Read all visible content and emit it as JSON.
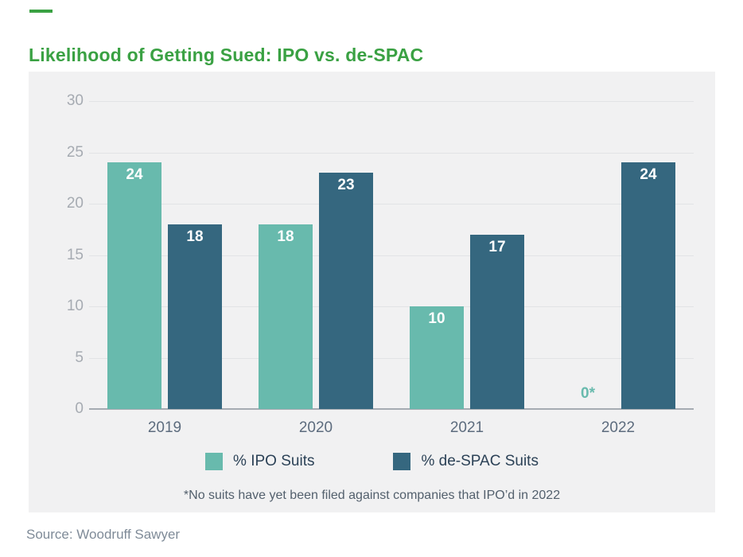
{
  "page": {
    "title": "Likelihood of Getting Sued: IPO vs. de-SPAC",
    "source": "Source: Woodruff Sawyer",
    "accent_color": "#3aa143"
  },
  "chart_data": {
    "type": "bar",
    "title": "Likelihood of Getting Sued: IPO vs. de-SPAC",
    "categories": [
      "2019",
      "2020",
      "2021",
      "2022"
    ],
    "series": [
      {
        "name": "% IPO Suits",
        "color": "#68baad",
        "values": [
          24,
          18,
          10,
          0
        ],
        "value_labels": [
          "24",
          "18",
          "10",
          "0*"
        ]
      },
      {
        "name": "% de-SPAC Suits",
        "color": "#35677f",
        "values": [
          18,
          23,
          17,
          24
        ],
        "value_labels": [
          "18",
          "23",
          "17",
          "24"
        ]
      }
    ],
    "ylim": [
      0,
      30
    ],
    "yticks": [
      0,
      5,
      10,
      15,
      20,
      25,
      30
    ],
    "xlabel": "",
    "ylabel": "",
    "grid": true,
    "legend_position": "bottom",
    "zero_bar_annotation": "0*",
    "footnote": "*No suits have yet been filed against companies that IPO’d in 2022"
  }
}
